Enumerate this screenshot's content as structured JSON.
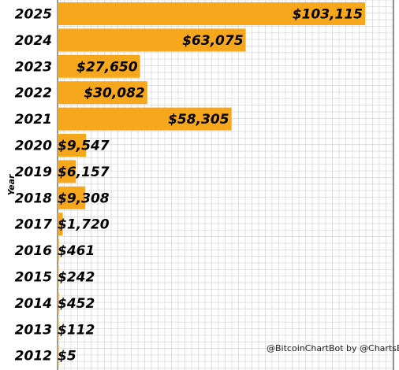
{
  "chart_data": {
    "type": "bar",
    "orientation": "horizontal",
    "title": "",
    "xlabel": "",
    "ylabel": "Year",
    "categories": [
      "2025",
      "2024",
      "2023",
      "2022",
      "2021",
      "2020",
      "2019",
      "2018",
      "2017",
      "2016",
      "2015",
      "2014",
      "2013",
      "2012"
    ],
    "values": [
      103115,
      63075,
      27650,
      30082,
      58305,
      9547,
      6157,
      9308,
      1720,
      461,
      242,
      452,
      112,
      5
    ],
    "value_labels": [
      "$103,115",
      "$63,075",
      "$27,650",
      "$30,082",
      "$58,305",
      "$9,547",
      "$6,157",
      "$9,308",
      "$1,720",
      "$461",
      "$242",
      "$452",
      "$112",
      "$5"
    ],
    "bar_color": "#f7a71b",
    "grid": true,
    "legend": "none",
    "annotation": "@BitcoinChartBot by @ChartsBTC"
  }
}
